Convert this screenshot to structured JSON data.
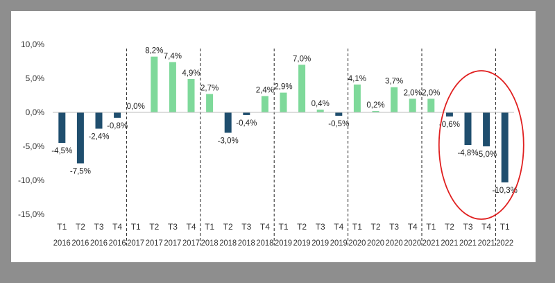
{
  "chart_data": {
    "type": "bar",
    "title": "",
    "xlabel": "",
    "ylabel": "",
    "ylim": [
      -15,
      10
    ],
    "yticks": [
      "10,0%",
      "5,0%",
      "0,0%",
      "-5,0%",
      "-10,0%",
      "-15,0%"
    ],
    "ytick_values": [
      10,
      5,
      0,
      -5,
      -10,
      -15
    ],
    "grid": false,
    "legend": "none",
    "colors": {
      "negative": "#1f4e6e",
      "positive": "#7ed99a",
      "highlight_circle": "#e02020",
      "divider": "#222222"
    },
    "categories": [
      {
        "q": "T1",
        "year": "2016"
      },
      {
        "q": "T2",
        "year": "2016"
      },
      {
        "q": "T3",
        "year": "2016"
      },
      {
        "q": "T4",
        "year": "2016"
      },
      {
        "q": "T1",
        "year": "2017"
      },
      {
        "q": "T2",
        "year": "2017"
      },
      {
        "q": "T3",
        "year": "2017"
      },
      {
        "q": "T4",
        "year": "2017"
      },
      {
        "q": "T1",
        "year": "2018"
      },
      {
        "q": "T2",
        "year": "2018"
      },
      {
        "q": "T3",
        "year": "2018"
      },
      {
        "q": "T4",
        "year": "2018"
      },
      {
        "q": "T1",
        "year": "2019"
      },
      {
        "q": "T2",
        "year": "2019"
      },
      {
        "q": "T3",
        "year": "2019"
      },
      {
        "q": "T4",
        "year": "2019"
      },
      {
        "q": "T1",
        "year": "2020"
      },
      {
        "q": "T2",
        "year": "2020"
      },
      {
        "q": "T3",
        "year": "2020"
      },
      {
        "q": "T4",
        "year": "2020"
      },
      {
        "q": "T1",
        "year": "2021"
      },
      {
        "q": "T2",
        "year": "2021"
      },
      {
        "q": "T3",
        "year": "2021"
      },
      {
        "q": "T4",
        "year": "2021"
      },
      {
        "q": "T1",
        "year": "2022"
      }
    ],
    "values": [
      -4.5,
      -7.5,
      -2.4,
      -0.8,
      0.0,
      8.2,
      7.4,
      4.9,
      2.7,
      -3.0,
      -0.4,
      2.4,
      2.9,
      7.0,
      0.4,
      -0.5,
      4.1,
      0.2,
      3.7,
      2.0,
      2.0,
      -0.6,
      -4.8,
      -5.0,
      -10.3
    ],
    "value_labels": [
      "-4,5%",
      "-7,5%",
      "-2,4%",
      "-0,8%",
      "0,0%",
      "8,2%",
      "7,4%",
      "4,9%",
      "2,7%",
      "-3,0%",
      "-0,4%",
      "2,4%",
      "2,9%",
      "7,0%",
      "0,4%",
      "-0,5%",
      "4,1%",
      "0,2%",
      "3,7%",
      "2,0%",
      "2,0%",
      "-0,6%",
      "-4,8%",
      "-5,0%",
      "-10,3%"
    ],
    "year_dividers_after_index": [
      3,
      7,
      11,
      15,
      19,
      23
    ],
    "highlighted_categories": [
      "T2 2021",
      "T3 2021",
      "T4 2021",
      "T1 2022"
    ]
  }
}
